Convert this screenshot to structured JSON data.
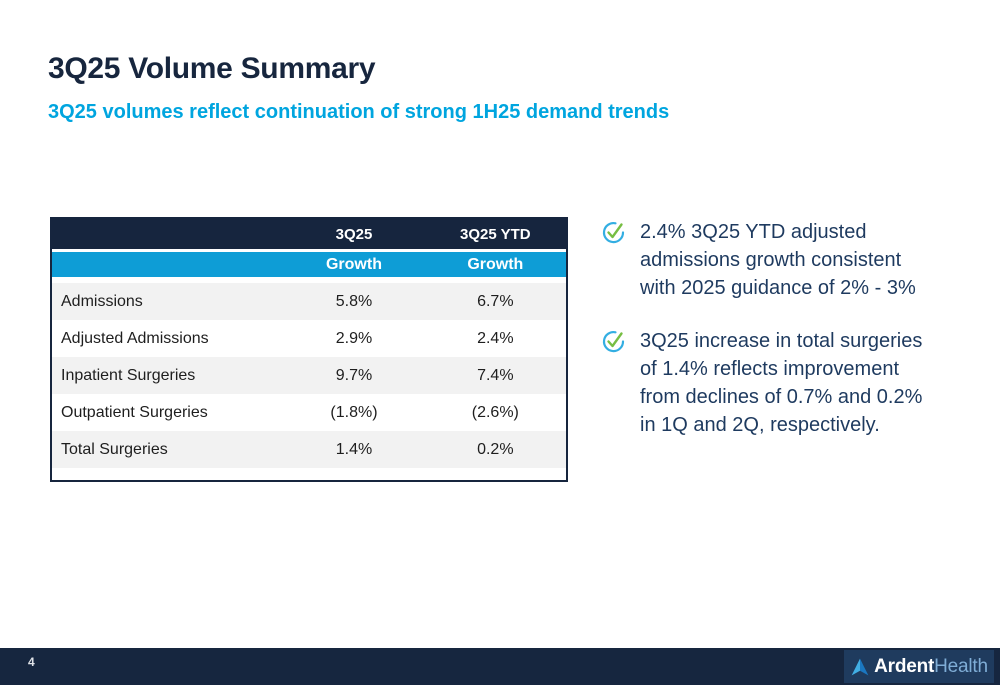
{
  "slide": {
    "title": "3Q25 Volume Summary",
    "subtitle": "3Q25 volumes reflect continuation of strong 1H25 demand trends"
  },
  "table": {
    "column_headers": [
      "3Q25",
      "3Q25 YTD"
    ],
    "sub_headers": [
      "Growth",
      "Growth"
    ],
    "rows": [
      {
        "label": "Admissions",
        "q_growth": "5.8%",
        "ytd_growth": "6.7%"
      },
      {
        "label": "Adjusted Admissions",
        "q_growth": "2.9%",
        "ytd_growth": "2.4%"
      },
      {
        "label": "Inpatient Surgeries",
        "q_growth": "9.7%",
        "ytd_growth": "7.4%"
      },
      {
        "label": "Outpatient Surgeries",
        "q_growth": "(1.8%)",
        "ytd_growth": "(2.6%)"
      },
      {
        "label": "Total Surgeries",
        "q_growth": "1.4%",
        "ytd_growth": "0.2%"
      }
    ]
  },
  "bullets": [
    {
      "icon": "check-circle-icon",
      "lines": [
        "2.4% 3Q25 YTD adjusted",
        "admissions growth consistent",
        "with 2025 guidance of 2% - 3%"
      ]
    },
    {
      "icon": "check-circle-icon",
      "lines": [
        "3Q25 increase in total surgeries",
        "of 1.4% reflects improvement",
        "from declines of 0.7% and 0.2%",
        "in 1Q and 2Q, respectively."
      ]
    }
  ],
  "footer": {
    "page_number": "4",
    "logo_bold": "Ardent",
    "logo_light": "Health"
  },
  "colors": {
    "navy": "#16253E",
    "accent_cyan": "#00A5DF",
    "table_blue": "#0E9DD6",
    "row_stripe": "#F2F2F2",
    "body_text": "#1E3A5F",
    "footer_bg": "#16263F",
    "logo_bg": "#1F3B5E",
    "check_green": "#77BE43",
    "check_ring_cyan": "#33AEE2",
    "logo_mark_light": "#41AEE4",
    "logo_mark_dark": "#1B77C0"
  }
}
